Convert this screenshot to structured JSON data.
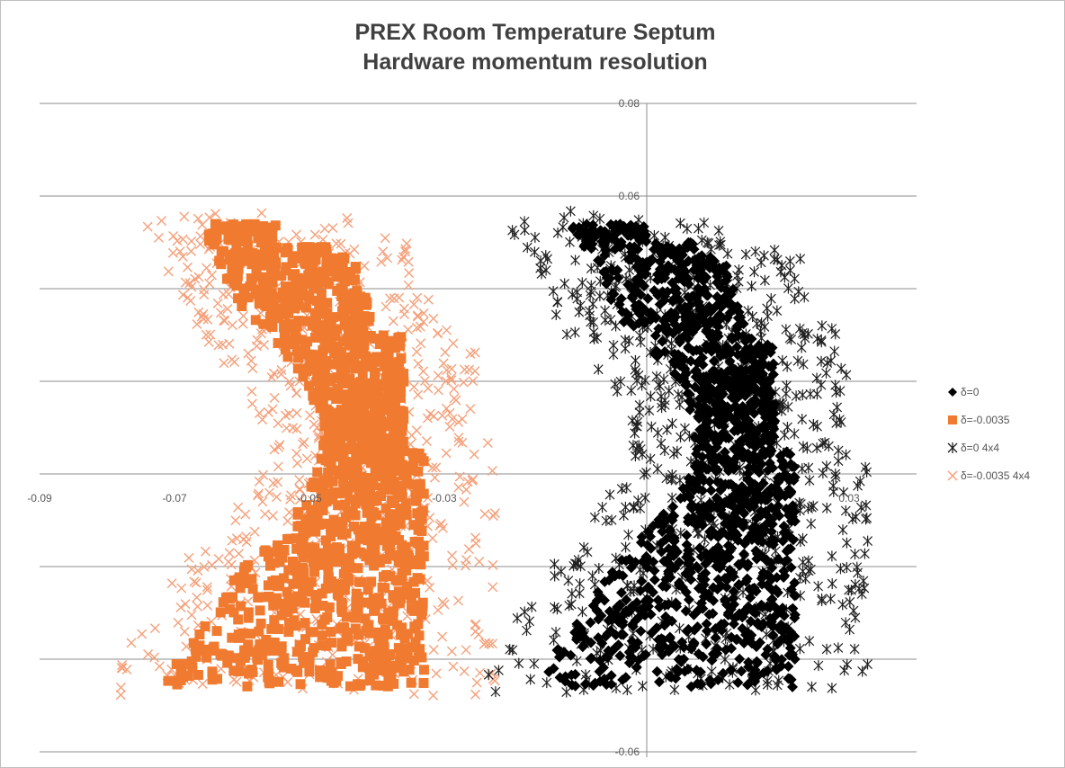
{
  "chart_data": {
    "type": "scatter",
    "title_lines": [
      "PREX Room Temperature Septum",
      "Hardware momentum resolution"
    ],
    "xlabel": "",
    "ylabel": "",
    "xlim": [
      -0.09,
      0.04
    ],
    "ylim": [
      -0.06,
      0.08
    ],
    "x_ticks": [
      -0.09,
      -0.07,
      -0.05,
      -0.03,
      -0.01,
      0.01,
      0.03
    ],
    "x_tick_labels": [
      "-0.09",
      "-0.07",
      "-0.05",
      "-0.03",
      "",
      "",
      "0.03"
    ],
    "y_ticks": [
      -0.06,
      -0.04,
      -0.02,
      0,
      0.02,
      0.04,
      0.06,
      0.08
    ],
    "y_tick_labels": [
      "-0.06",
      "",
      "",
      "",
      "",
      "",
      "0.06",
      "0.08"
    ],
    "grid": "horizontal",
    "legend_position": "right",
    "series": [
      {
        "name": "δ=0",
        "marker": "diamond",
        "color": "#000000",
        "x_range": [
          -0.013,
          0.0245
        ],
        "count": 1500
      },
      {
        "name": "δ=-0.0035",
        "marker": "square",
        "color": "#f07a30",
        "x_range": [
          -0.072,
          -0.032
        ],
        "count": 1500
      },
      {
        "name": "δ=0 4x4",
        "marker": "star",
        "color": "#202020",
        "x_range": [
          -0.029,
          0.031
        ],
        "count": 700
      },
      {
        "name": "δ=-0.0035 4x4",
        "marker": "x",
        "color": "#f5a07a",
        "x_range": [
          -0.081,
          -0.024
        ],
        "count": 700
      }
    ]
  }
}
